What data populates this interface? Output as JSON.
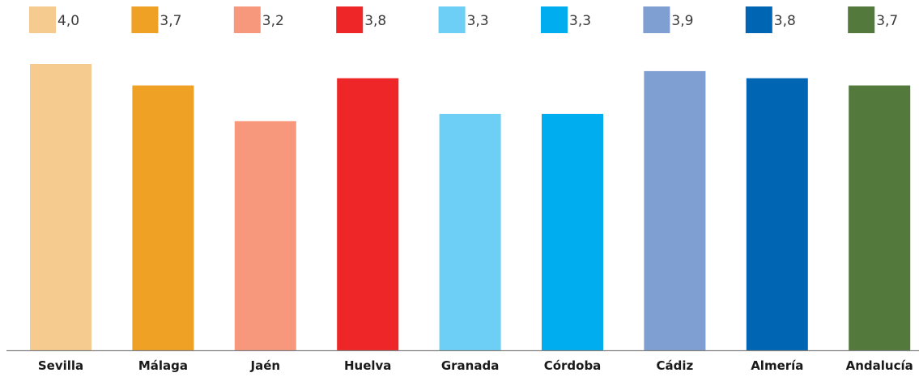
{
  "chart_data": {
    "type": "bar",
    "categories": [
      "Sevilla",
      "Málaga",
      "Jaén",
      "Huelva",
      "Granada",
      "Córdoba",
      "Cádiz",
      "Almería",
      "Andalucía"
    ],
    "values": [
      4.0,
      3.7,
      3.2,
      3.8,
      3.3,
      3.3,
      3.9,
      3.8,
      3.7
    ],
    "value_labels": [
      "4,0",
      "3,7",
      "3,2",
      "3,8",
      "3,3",
      "3,3",
      "3,9",
      "3,8",
      "3,7"
    ],
    "colors": [
      "#F6CB8F",
      "#EFA125",
      "#F7987C",
      "#EE2628",
      "#6DCFF6",
      "#00AEEF",
      "#7F9FD3",
      "#0066B3",
      "#53793D"
    ],
    "title": "",
    "xlabel": "",
    "ylabel": "",
    "ylim": [
      0,
      4.0
    ],
    "legend_placement": "top",
    "grid": false
  }
}
